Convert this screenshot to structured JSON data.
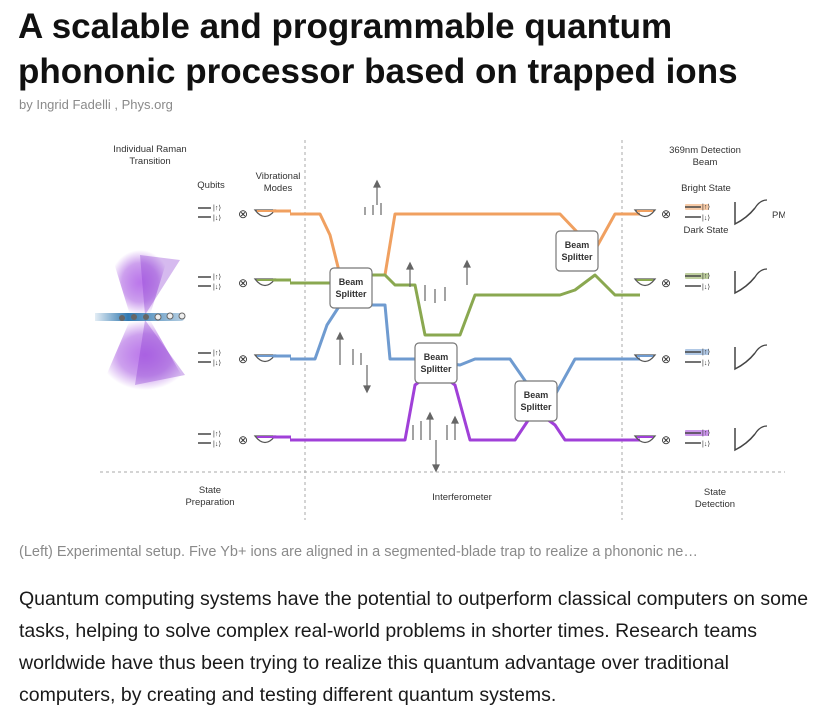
{
  "article": {
    "title": "A scalable and programmable quantum phononic processor based on trapped ions",
    "byline": "by Ingrid Fadelli , Phys.org",
    "caption": "(Left) Experimental setup. Five Yb+ ions are aligned in a segmented-blade trap to realize a phononic ne…",
    "paragraph": "Quantum computing systems have the potential to outperform classical computers on some tasks, helping to solve complex real-world problems in shorter times. Research teams worldwide have thus been trying to realize this quantum advantage over traditional computers, by creating and testing different quantum systems."
  },
  "figure": {
    "labels": {
      "raman": [
        "Individual Raman",
        "Transition"
      ],
      "qubits": "Qubits",
      "vib_modes": [
        "Vibrational",
        "Modes"
      ],
      "detection_beam": [
        "369nm Detection",
        "Beam"
      ],
      "bright_state": "Bright State",
      "dark_state": "Dark State",
      "pmt": "PMT",
      "state_prep": [
        "State",
        "Preparation"
      ],
      "interferometer": "Interferometer",
      "state_detection": [
        "State",
        "Detection"
      ],
      "beam_splitter": [
        "Beam",
        "Splitter"
      ],
      "ket_up": "|↑⟩",
      "ket_down": "|↓⟩",
      "tensor": "⊗"
    },
    "colors": {
      "orange": "#f0a060",
      "green": "#8aa850",
      "blue": "#6f9bd0",
      "purple": "#a040d8",
      "laser_purple": "#8a3ad0",
      "ion_beam": "#2a7ab0"
    }
  }
}
